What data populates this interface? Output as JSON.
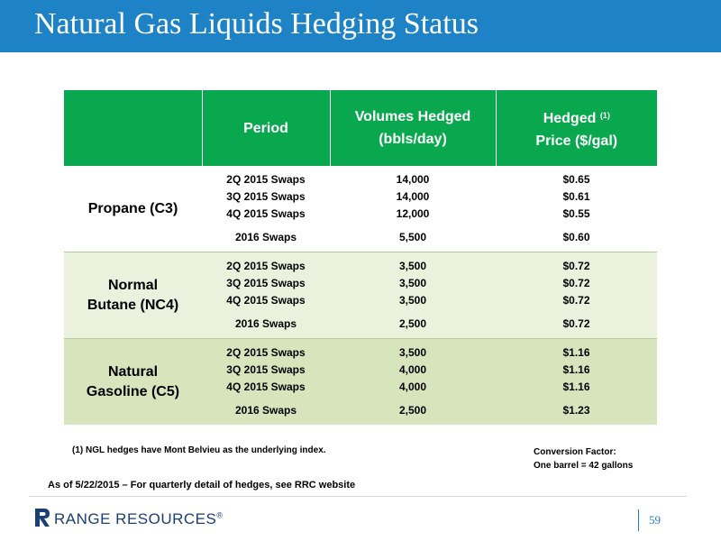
{
  "title": "Natural Gas Liquids Hedging Status",
  "table": {
    "headers": {
      "period": "Period",
      "volumes_line1": "Volumes Hedged",
      "volumes_line2": "(bbls/day)",
      "price_line1": "Hedged",
      "price_note": "(1)",
      "price_line2": "Price ($/gal)"
    },
    "groups": [
      {
        "name": "Propane (C3)",
        "rows": [
          {
            "period": "2Q 2015 Swaps",
            "volume": "14,000",
            "price": "$0.65"
          },
          {
            "period": "3Q 2015 Swaps",
            "volume": "14,000",
            "price": "$0.61"
          },
          {
            "period": "4Q 2015 Swaps",
            "volume": "12,000",
            "price": "$0.55"
          },
          {
            "period": "2016 Swaps",
            "volume": "5,500",
            "price": "$0.60"
          }
        ]
      },
      {
        "name": "Normal Butane (NC4)",
        "rows": [
          {
            "period": "2Q 2015 Swaps",
            "volume": "3,500",
            "price": "$0.72"
          },
          {
            "period": "3Q 2015 Swaps",
            "volume": "3,500",
            "price": "$0.72"
          },
          {
            "period": "4Q 2015 Swaps",
            "volume": "3,500",
            "price": "$0.72"
          },
          {
            "period": "2016 Swaps",
            "volume": "2,500",
            "price": "$0.72"
          }
        ]
      },
      {
        "name": "Natural Gasoline (C5)",
        "rows": [
          {
            "period": "2Q 2015 Swaps",
            "volume": "3,500",
            "price": "$1.16"
          },
          {
            "period": "3Q 2015 Swaps",
            "volume": "4,000",
            "price": "$1.16"
          },
          {
            "period": "4Q 2015 Swaps",
            "volume": "4,000",
            "price": "$1.16"
          },
          {
            "period": "2016 Swaps",
            "volume": "2,500",
            "price": "$1.23"
          }
        ]
      }
    ]
  },
  "footnote": "(1) NGL hedges have Mont Belvieu as the underlying index.",
  "conversion": {
    "line1": "Conversion Factor:",
    "line2": "One barrel = 42 gallons"
  },
  "as_of": "As of 5/22/2015 – For quarterly detail of hedges, see RRC website",
  "logo": {
    "text": "RANGE RESOURCES",
    "mark": "®"
  },
  "page_number": "59",
  "colors": {
    "title_bar": "#1d82c6",
    "header_green": "#0aa84e",
    "group_bg": [
      "#ffffff",
      "#eaf1dd",
      "#d8e4bc"
    ],
    "logo_navy": "#1a3f75"
  }
}
